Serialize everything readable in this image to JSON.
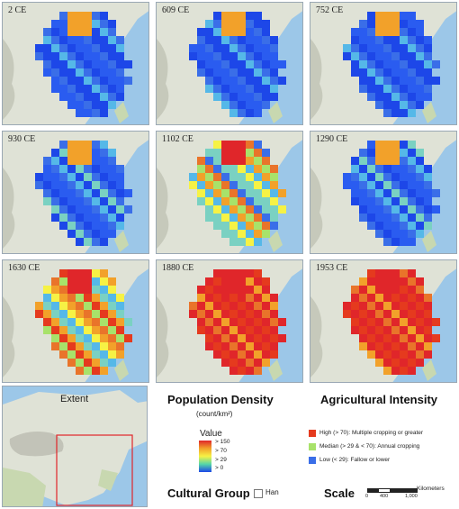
{
  "panels": [
    {
      "label": "2 CE",
      "pattern": "low"
    },
    {
      "label": "609 CE",
      "pattern": "low"
    },
    {
      "label": "752 CE",
      "pattern": "low"
    },
    {
      "label": "930 CE",
      "pattern": "low-mid"
    },
    {
      "label": "1102 CE",
      "pattern": "mid"
    },
    {
      "label": "1290 CE",
      "pattern": "low-mid"
    },
    {
      "label": "1630 CE",
      "pattern": "mid-high"
    },
    {
      "label": "1880 CE",
      "pattern": "high"
    },
    {
      "label": "1953 CE",
      "pattern": "high"
    }
  ],
  "extent": {
    "title": "Extent"
  },
  "population": {
    "title": "Population Density",
    "unit": "(count/km²)",
    "value_label": "Value",
    "ticks": [
      "> 150",
      "> 70",
      "> 29",
      "> 0"
    ]
  },
  "agri": {
    "title": "Agricultural Intensity",
    "items": [
      {
        "label": "High (> 70): Multiple cropping or greater",
        "color": "#e53a1e"
      },
      {
        "label": "Median (> 29 & < 70): Annual cropping",
        "color": "#a8e26a"
      },
      {
        "label": "Low (< 29): Fallow or lower",
        "color": "#3a6ee8"
      }
    ]
  },
  "cultural": {
    "title": "Cultural Group",
    "item": "Han"
  },
  "scale": {
    "title": "Scale",
    "unit": "Kilometers",
    "ticks": [
      "0",
      "400",
      "1,000"
    ]
  },
  "colors": {
    "sea": "#9cc7e8",
    "land": "#dfe2d6",
    "mountain": "#c6c9bb"
  }
}
